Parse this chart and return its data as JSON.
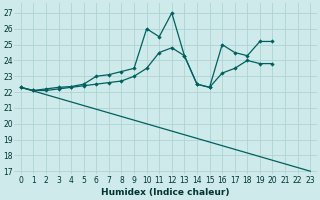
{
  "xlabel": "Humidex (Indice chaleur)",
  "xlim": [
    -0.5,
    23.5
  ],
  "ylim": [
    16.8,
    27.6
  ],
  "yticks": [
    17,
    18,
    19,
    20,
    21,
    22,
    23,
    24,
    25,
    26,
    27
  ],
  "xticks": [
    0,
    1,
    2,
    3,
    4,
    5,
    6,
    7,
    8,
    9,
    10,
    11,
    12,
    13,
    14,
    15,
    16,
    17,
    18,
    19,
    20,
    21,
    22,
    23
  ],
  "bg_color": "#ceeaea",
  "grid_color": "#aed4d4",
  "line_color": "#006060",
  "line1_x": [
    0,
    1,
    2,
    3,
    4,
    5,
    6,
    7,
    8,
    9,
    10,
    11,
    12,
    13,
    14,
    15,
    16,
    17,
    18,
    19,
    20
  ],
  "line1_y": [
    22.3,
    22.1,
    22.2,
    22.3,
    22.35,
    22.5,
    23.0,
    23.1,
    23.3,
    23.5,
    26.0,
    25.5,
    27.0,
    24.3,
    22.5,
    22.3,
    25.0,
    24.5,
    24.3,
    25.2,
    25.2
  ],
  "line2_x": [
    0,
    1,
    2,
    3,
    4,
    5,
    6,
    7,
    8,
    9,
    10,
    11,
    12,
    13,
    14,
    15,
    16,
    17,
    18,
    19,
    20
  ],
  "line2_y": [
    22.3,
    22.1,
    22.1,
    22.2,
    22.3,
    22.4,
    22.5,
    22.6,
    22.7,
    23.0,
    23.5,
    24.5,
    24.8,
    24.3,
    22.5,
    22.3,
    23.2,
    23.5,
    24.0,
    23.8,
    23.8
  ],
  "line3_x": [
    0,
    23
  ],
  "line3_y": [
    22.3,
    17.0
  ],
  "tick_fontsize": 5.5,
  "xlabel_fontsize": 6.5
}
